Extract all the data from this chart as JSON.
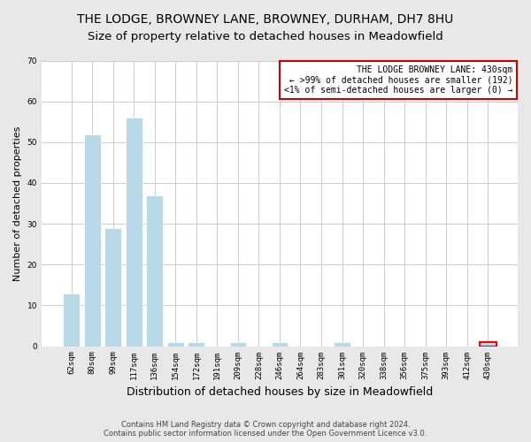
{
  "title": "THE LODGE, BROWNEY LANE, BROWNEY, DURHAM, DH7 8HU",
  "subtitle": "Size of property relative to detached houses in Meadowfield",
  "xlabel": "Distribution of detached houses by size in Meadowfield",
  "ylabel": "Number of detached properties",
  "categories": [
    "62sqm",
    "80sqm",
    "99sqm",
    "117sqm",
    "136sqm",
    "154sqm",
    "172sqm",
    "191sqm",
    "209sqm",
    "228sqm",
    "246sqm",
    "264sqm",
    "283sqm",
    "301sqm",
    "320sqm",
    "338sqm",
    "356sqm",
    "375sqm",
    "393sqm",
    "412sqm",
    "430sqm"
  ],
  "values": [
    13,
    52,
    29,
    56,
    37,
    1,
    1,
    0,
    1,
    0,
    1,
    0,
    0,
    1,
    0,
    0,
    0,
    0,
    0,
    0,
    1
  ],
  "bar_color": "#b8d9e8",
  "last_bar_color": "#ff0000",
  "ylim": [
    0,
    70
  ],
  "yticks": [
    0,
    10,
    20,
    30,
    40,
    50,
    60,
    70
  ],
  "annotation_title": "THE LODGE BROWNEY LANE: 430sqm",
  "annotation_line1": "← >99% of detached houses are smaller (192)",
  "annotation_line2": "<1% of semi-detached houses are larger (0) →",
  "annotation_box_color": "#cc0000",
  "footnote1": "Contains HM Land Registry data © Crown copyright and database right 2024.",
  "footnote2": "Contains public sector information licensed under the Open Government Licence v3.0.",
  "background_color": "#e8e8e8",
  "plot_background_color": "#ffffff",
  "grid_color": "#cccccc",
  "title_fontsize": 10,
  "xlabel_fontsize": 9,
  "ylabel_fontsize": 8,
  "footnote_fontsize": 6,
  "tick_fontsize": 6.5,
  "annot_fontsize": 7
}
